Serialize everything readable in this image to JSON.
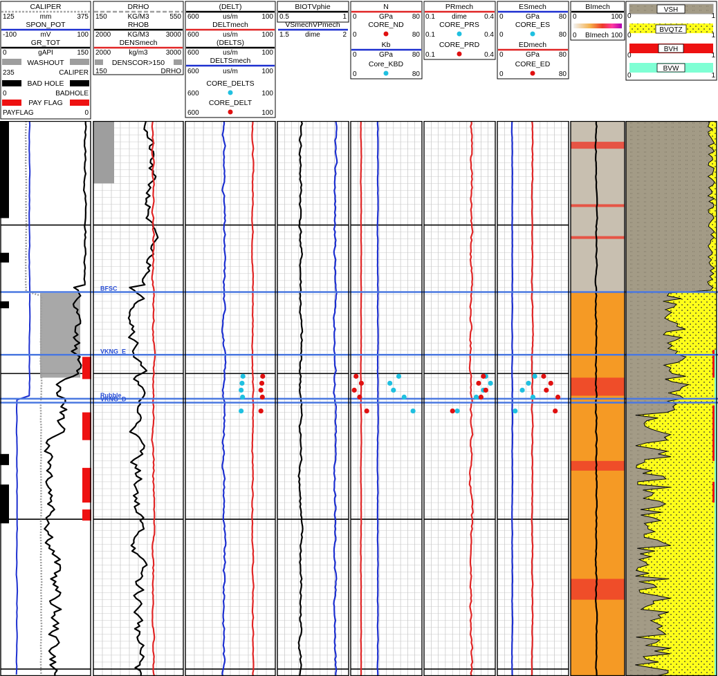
{
  "header": {
    "t1": {
      "caliper": {
        "name": "CALIPER",
        "min": "125",
        "unit": "mm",
        "max": "375",
        "color": "#a8a8a8"
      },
      "spon_pot": {
        "name": "SPON_POT",
        "min": "-100",
        "unit": "mV",
        "max": "100",
        "color": "#1c2fd0"
      },
      "gr_tot": {
        "name": "GR_TOT",
        "min": "0",
        "unit": "gAPI",
        "max": "150",
        "color": "#000000"
      },
      "washout": {
        "name": "WASHOUT",
        "left": "235",
        "right": "CALIPER"
      },
      "bad_hole": {
        "name": "BAD HOLE",
        "left": "0",
        "right": "BADHOLE"
      },
      "pay_flag": {
        "name": "PAY FLAG",
        "left": "PAYFLAG",
        "right": "0"
      }
    },
    "t2": {
      "drho": {
        "name": "DRHO",
        "min": "150",
        "unit": "KG/M3",
        "max": "550"
      },
      "rhob": {
        "name": "RHOB",
        "min": "2000",
        "unit": "KG/M3",
        "max": "3000"
      },
      "densmech": {
        "name": "DENSmech",
        "min": "2000",
        "unit": "kg/m3",
        "max": "3000"
      },
      "denscor": {
        "name": "DENSCOR>150",
        "left": "150",
        "right": "DRHO"
      }
    },
    "t3": {
      "delt": {
        "name": "(DELT)",
        "min": "600",
        "unit": "us/m",
        "max": "100"
      },
      "deltmech": {
        "name": "DELTmech",
        "min": "600",
        "unit": "us/m",
        "max": "100"
      },
      "delts": {
        "name": "(DELTS)",
        "min": "600",
        "unit": "us/m",
        "max": "100"
      },
      "deltsmech": {
        "name": "DELTSmech",
        "min": "600",
        "unit": "us/m",
        "max": "100"
      },
      "core_delts": {
        "name": "CORE_DELTS",
        "min": "600",
        "max": "100"
      },
      "core_delt": {
        "name": "CORE_DELT",
        "min": "600",
        "max": "100"
      }
    },
    "t4": {
      "biot": {
        "name": "BIOTVphie",
        "min": "0.5",
        "max": "1"
      },
      "vsvp": {
        "name": "VSmechVPmech",
        "min": "1.5",
        "unit": "dime",
        "max": "2"
      }
    },
    "t5": {
      "n": {
        "name": "N",
        "min": "0",
        "unit": "GPa",
        "max": "80"
      },
      "core_nd": {
        "name": "CORE_ND",
        "min": "0",
        "max": "80"
      },
      "kb": {
        "name": "Kb",
        "min": "0",
        "unit": "GPa",
        "max": "80"
      },
      "core_kbd": {
        "name": "Core_KBD",
        "min": "0",
        "max": "80"
      }
    },
    "t6": {
      "prmech": {
        "name": "PRmech",
        "min": "0.1",
        "unit": "dime",
        "max": "0.4"
      },
      "core_prs": {
        "name": "CORE_PRS",
        "min": "0.1",
        "max": "0.4"
      },
      "core_prd": {
        "name": "CORE_PRD",
        "min": "0.1",
        "max": "0.4"
      }
    },
    "t7": {
      "esmech": {
        "name": "ESmech",
        "min": "0",
        "unit": "GPa",
        "max": "80"
      },
      "core_es": {
        "name": "CORE_ES",
        "min": "0",
        "max": "80"
      },
      "edmech": {
        "name": "EDmech",
        "min": "0",
        "unit": "GPa",
        "max": "80"
      },
      "core_ed": {
        "name": "CORE_ED",
        "min": "0",
        "max": "80"
      }
    },
    "t8": {
      "blmech": {
        "name": "BImech",
        "min": "0",
        "max": "100"
      },
      "blfill": {
        "left": "0",
        "name": "BImech",
        "right": "100"
      }
    },
    "t9": {
      "vsh": {
        "name": "VSH",
        "min": "0",
        "max": "1"
      },
      "bvqtz": {
        "name": "BVQTZ",
        "min": "0",
        "max": "1"
      },
      "bvh": {
        "name": "BVH",
        "min": "0",
        "max": "1"
      },
      "bvw": {
        "name": "BVW",
        "min": "0",
        "max": "1"
      }
    }
  },
  "colors": {
    "blue": "#1c2fd0",
    "red": "#e02424",
    "black": "#000000",
    "gray": "#9e9e9e",
    "vsh": "#a39b86",
    "bvqtz": "#ffff1a",
    "bvh": "#ee1111",
    "bvw": "#7fffd4",
    "top_line": "#4a78e0",
    "core_blue": "#20c0e0",
    "core_red": "#e01010",
    "orange": "#f59a25",
    "shale": "#c8bfb0"
  },
  "tops": [
    {
      "name": "BFSC",
      "depth": 123.3
    },
    {
      "name": "VKNG_E",
      "depth": 168.5
    },
    {
      "name": "Rubble",
      "depth": 200.2
    },
    {
      "name": "VKNG_D",
      "depth": 203.0
    }
  ],
  "chart_data": {
    "type": "well-log",
    "depth_range": [
      0,
      400
    ],
    "core_depths": [
      184,
      189,
      194,
      199,
      209
    ],
    "core_delts": [
      280,
      285,
      290,
      282,
      290
    ],
    "core_delt": [
      170,
      175,
      180,
      172,
      180
    ],
    "core_nd": [
      6,
      12,
      4,
      10,
      18
    ],
    "core_kbd": [
      54,
      44,
      48,
      60,
      70
    ],
    "core_prs": [
      0.36,
      0.38,
      0.35,
      0.32,
      0.24
    ],
    "core_prd": [
      0.35,
      0.33,
      0.36,
      0.34,
      0.22
    ],
    "core_es": [
      42,
      35,
      28,
      40,
      20
    ],
    "core_ed": [
      52,
      60,
      55,
      68,
      65
    ]
  }
}
